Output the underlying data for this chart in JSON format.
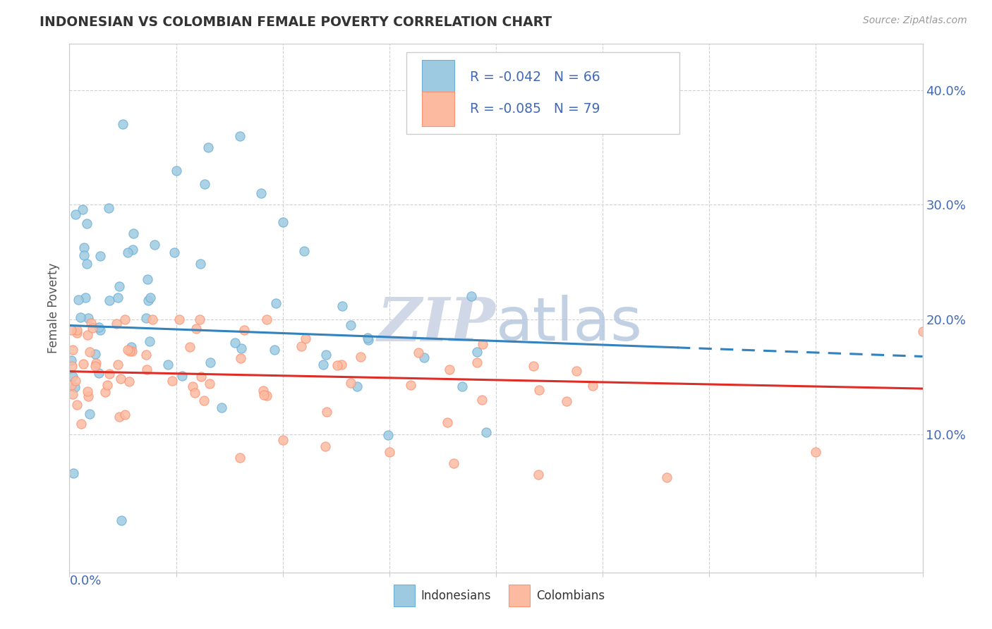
{
  "title": "INDONESIAN VS COLOMBIAN FEMALE POVERTY CORRELATION CHART",
  "source": "Source: ZipAtlas.com",
  "ylabel": "Female Poverty",
  "xlim": [
    0.0,
    0.4
  ],
  "ylim": [
    -0.02,
    0.44
  ],
  "ytick_vals": [
    0.1,
    0.2,
    0.3,
    0.4
  ],
  "indonesian_R": -0.042,
  "indonesian_N": 66,
  "colombian_R": -0.085,
  "colombian_N": 79,
  "indonesian_color": "#9ecae1",
  "colombian_color": "#fcbba1",
  "indonesian_edge": "#6baed6",
  "colombian_edge": "#fc9272",
  "trend_indonesian_color": "#3182bd",
  "trend_colombian_color": "#de2d26",
  "watermark_color": "#d0d8e8",
  "legend_text_color": "#4169b8",
  "grid_color": "#d0d0d0",
  "spine_color": "#cccccc",
  "title_color": "#333333",
  "source_color": "#999999",
  "axis_label_color": "#4169b8"
}
